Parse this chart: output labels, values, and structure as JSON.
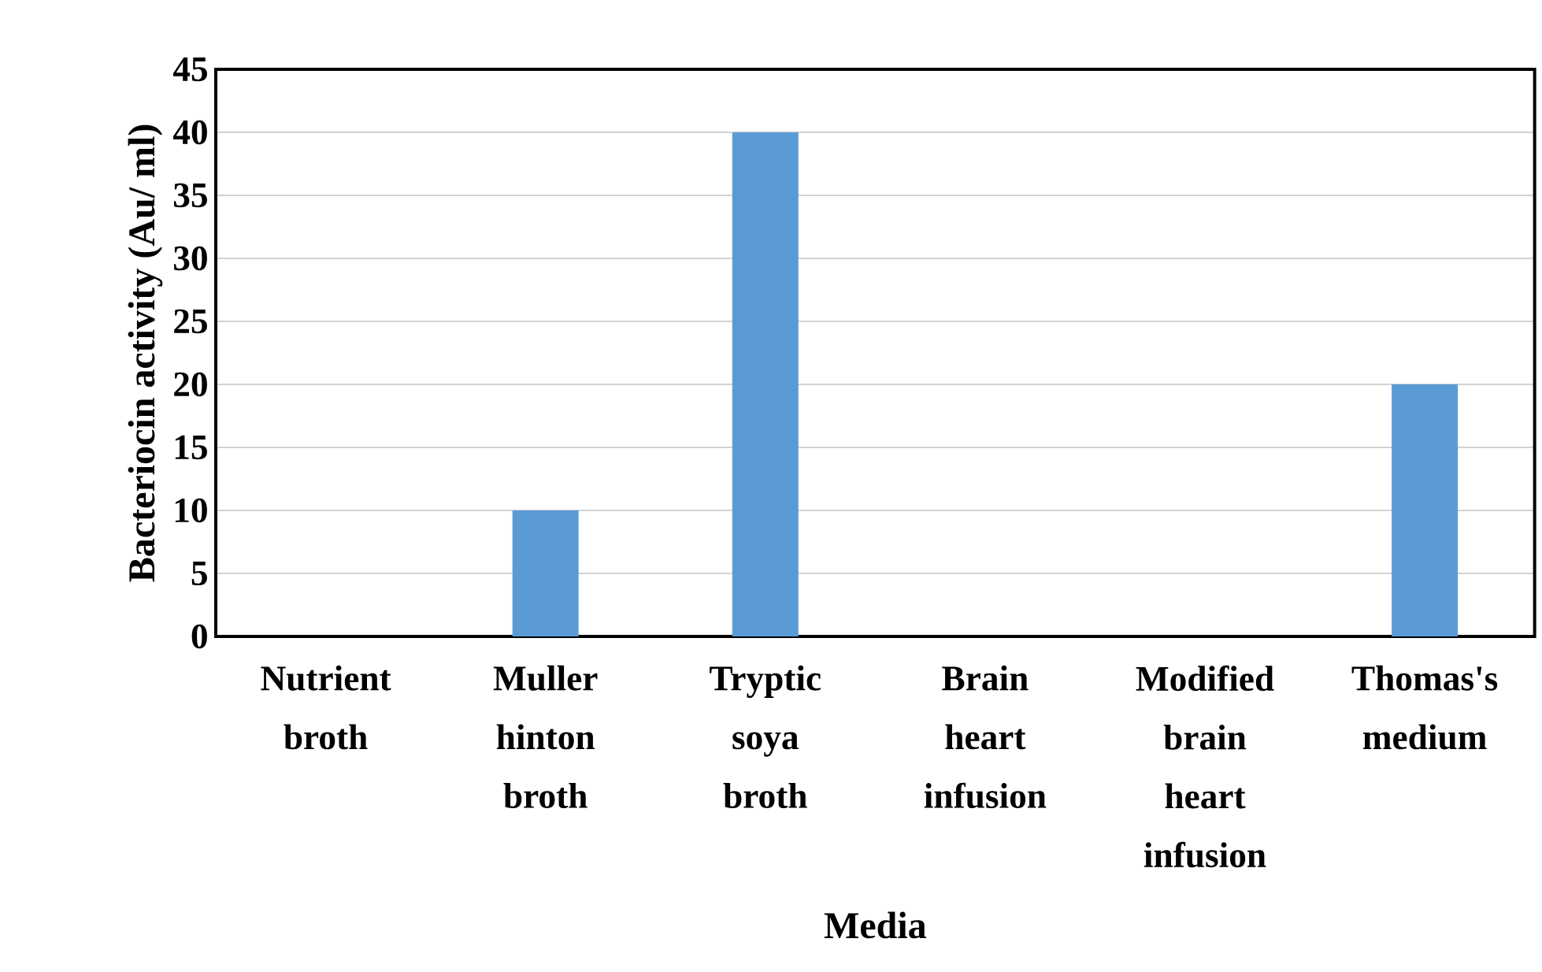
{
  "chart_data": {
    "type": "bar",
    "xlabel": "Media",
    "ylabel": "Bacteriocin activity (Au/ ml)",
    "categories": [
      "Nutrient broth",
      "Muller hinton broth",
      "Tryptic soya broth",
      "Brain heart infusion",
      "Modified brain heart infusion",
      "Thomas's medium"
    ],
    "values": [
      0,
      10,
      40,
      0,
      0,
      20
    ],
    "color": "#5b9bd5",
    "ylim": [
      0,
      45
    ],
    "yticks": [
      0,
      5,
      10,
      15,
      20,
      25,
      30,
      35,
      40,
      45
    ],
    "grid": "y"
  }
}
